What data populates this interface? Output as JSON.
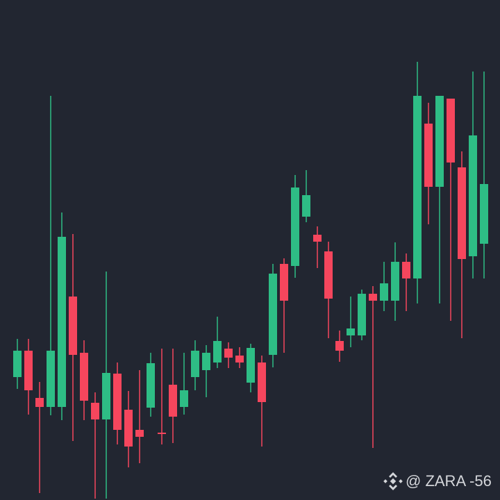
{
  "chart_data": {
    "type": "candlestick",
    "ylim": [
      0,
      720
    ],
    "up_color": "#2ebd85",
    "down_color": "#f6465d",
    "open": [
      177,
      215,
      147,
      134,
      134,
      293,
      212,
      140,
      116,
      182,
      130,
      101,
      133,
      97,
      166,
      134,
      177,
      187,
      198,
      218,
      208,
      169,
      198,
      209,
      340,
      337,
      408,
      382,
      358,
      229,
      237,
      237,
      297,
      287,
      287,
      343,
      319,
      542,
      451,
      578,
      479,
      351,
      369
    ],
    "high": [
      232,
      232,
      170,
      582,
      414,
      383,
      230,
      155,
      329,
      198,
      157,
      187,
      212,
      218,
      218,
      212,
      230,
      223,
      264,
      227,
      220,
      225,
      208,
      340,
      348,
      468,
      475,
      394,
      372,
      244,
      293,
      303,
      308,
      343,
      371,
      355,
      631,
      572,
      582,
      578,
      502,
      617,
      617
    ],
    "low": [
      160,
      123,
      10,
      122,
      115,
      85,
      115,
      2,
      2,
      80,
      47,
      53,
      120,
      80,
      82,
      123,
      158,
      148,
      190,
      190,
      190,
      155,
      77,
      191,
      212,
      320,
      400,
      334,
      233,
      199,
      220,
      230,
      75,
      272,
      258,
      272,
      283,
      397,
      283,
      258,
      233,
      319,
      319
    ],
    "close": [
      215,
      158,
      134,
      215,
      379,
      209,
      143,
      116,
      183,
      101,
      77,
      91,
      197,
      95,
      120,
      158,
      215,
      212,
      229,
      205,
      198,
      219,
      141,
      326,
      287,
      450,
      439,
      372,
      290,
      215,
      247,
      297,
      287,
      312,
      343,
      319,
      582,
      451,
      582,
      486,
      347,
      525,
      455
    ],
    "watermark": "@ ZARA -56"
  }
}
